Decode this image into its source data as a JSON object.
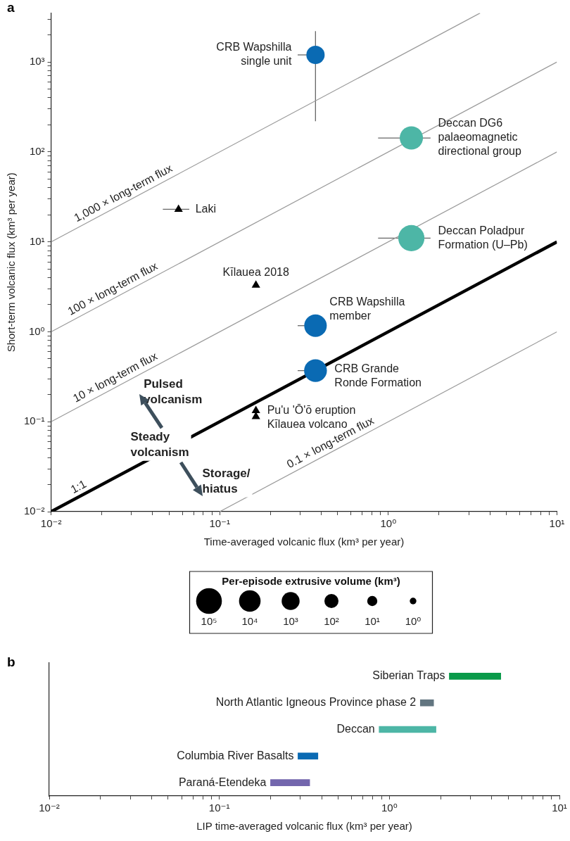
{
  "chart_data": [
    {
      "type": "bubble",
      "title": "a",
      "xlabel": "Time-averaged volcanic flux (km³ per year)",
      "ylabel": "Short-term volcanic flux (km³ per year)",
      "log": "xy",
      "legend": false,
      "grid": false,
      "legend_title": "Per-episode extrusive volume (km³)",
      "size_legend": [
        {
          "value": 0.97,
          "label": "10⁵"
        },
        {
          "value": 0.68,
          "label": "10⁴"
        },
        {
          "value": 0.47,
          "label": "10³"
        },
        {
          "value": 0.29,
          "label": "10²"
        },
        {
          "value": 0.15,
          "label": "10¹"
        },
        {
          "value": 0.064,
          "label": "10⁰"
        }
      ],
      "xlim": [
        0.01,
        10
      ],
      "ylim": [
        0.01,
        3500
      ],
      "xticks": [
        {
          "value": 0.01,
          "label": "10⁻²"
        },
        {
          "value": 0.02,
          "label": null
        },
        {
          "value": 0.03,
          "label": null
        },
        {
          "value": 0.04,
          "label": null
        },
        {
          "value": 0.05,
          "label": null
        },
        {
          "value": 0.06,
          "label": null
        },
        {
          "value": 0.07,
          "label": null
        },
        {
          "value": 0.08,
          "label": null
        },
        {
          "value": 0.09,
          "label": null
        },
        {
          "value": 0.1,
          "label": "10⁻¹"
        },
        {
          "value": 0.2,
          "label": null
        },
        {
          "value": 0.3,
          "label": null
        },
        {
          "value": 0.4,
          "label": null
        },
        {
          "value": 0.5,
          "label": null
        },
        {
          "value": 0.6,
          "label": null
        },
        {
          "value": 0.7,
          "label": null
        },
        {
          "value": 0.8,
          "label": null
        },
        {
          "value": 0.9,
          "label": null
        },
        {
          "value": 1,
          "label": "10⁰"
        },
        {
          "value": 2,
          "label": null
        },
        {
          "value": 3,
          "label": null
        },
        {
          "value": 4,
          "label": null
        },
        {
          "value": 5,
          "label": null
        },
        {
          "value": 6,
          "label": null
        },
        {
          "value": 7,
          "label": null
        },
        {
          "value": 8,
          "label": null
        },
        {
          "value": 9,
          "label": null
        },
        {
          "value": 10,
          "label": "10¹"
        }
      ],
      "yticks": [
        {
          "value": 0.01,
          "label": "10⁻²"
        },
        {
          "value": 0.02,
          "label": null
        },
        {
          "value": 0.03,
          "label": null
        },
        {
          "value": 0.04,
          "label": null
        },
        {
          "value": 0.05,
          "label": null
        },
        {
          "value": 0.06,
          "label": null
        },
        {
          "value": 0.07,
          "label": null
        },
        {
          "value": 0.08,
          "label": null
        },
        {
          "value": 0.09,
          "label": null
        },
        {
          "value": 0.1,
          "label": "10⁻¹"
        },
        {
          "value": 0.2,
          "label": null
        },
        {
          "value": 0.3,
          "label": null
        },
        {
          "value": 0.4,
          "label": null
        },
        {
          "value": 0.5,
          "label": null
        },
        {
          "value": 0.6,
          "label": null
        },
        {
          "value": 0.7,
          "label": null
        },
        {
          "value": 0.8,
          "label": null
        },
        {
          "value": 0.9,
          "label": null
        },
        {
          "value": 1,
          "label": "10⁰"
        },
        {
          "value": 2,
          "label": null
        },
        {
          "value": 3,
          "label": null
        },
        {
          "value": 4,
          "label": null
        },
        {
          "value": 5,
          "label": null
        },
        {
          "value": 6,
          "label": null
        },
        {
          "value": 7,
          "label": null
        },
        {
          "value": 8,
          "label": null
        },
        {
          "value": 9,
          "label": null
        },
        {
          "value": 10,
          "label": "10¹"
        },
        {
          "value": 20,
          "label": null
        },
        {
          "value": 30,
          "label": null
        },
        {
          "value": 40,
          "label": null
        },
        {
          "value": 50,
          "label": null
        },
        {
          "value": 60,
          "label": null
        },
        {
          "value": 70,
          "label": null
        },
        {
          "value": 80,
          "label": null
        },
        {
          "value": 90,
          "label": null
        },
        {
          "value": 100,
          "label": "10²"
        },
        {
          "value": 200,
          "label": null
        },
        {
          "value": 300,
          "label": null
        },
        {
          "value": 400,
          "label": null
        },
        {
          "value": 500,
          "label": null
        },
        {
          "value": 600,
          "label": null
        },
        {
          "value": 700,
          "label": null
        },
        {
          "value": 800,
          "label": null
        },
        {
          "value": 900,
          "label": null
        },
        {
          "value": 1000,
          "label": "10³"
        },
        {
          "value": 2000,
          "label": null
        },
        {
          "value": 3000,
          "label": null
        }
      ],
      "series": [
        {
          "type": "line",
          "name": "1,000 × long-term flux",
          "color": "#9a9a9a",
          "x": [
            0.01,
            3.5
          ],
          "values": [
            10,
            3500
          ]
        },
        {
          "type": "line",
          "name": "100 × long-term flux",
          "color": "#9a9a9a",
          "x": [
            0.01,
            10
          ],
          "values": [
            1,
            1000
          ]
        },
        {
          "type": "line",
          "name": "10 × long-term flux",
          "color": "#9a9a9a",
          "x": [
            0.01,
            10
          ],
          "values": [
            0.1,
            100
          ]
        },
        {
          "type": "line",
          "name": "1:1",
          "color": "#000000",
          "x": [
            0.01,
            10
          ],
          "values": [
            0.01,
            10
          ]
        },
        {
          "type": "line",
          "name": "0.1 × long-term flux",
          "color": "#9a9a9a",
          "x": [
            0.1,
            10
          ],
          "values": [
            0.01,
            1
          ]
        },
        {
          "type": "bubble",
          "color": "#0a6ab3",
          "x": [
            0.37,
            0.37,
            0.37
          ],
          "values": [
            1200,
            1.17,
            0.37
          ],
          "sizes": [
            0.49,
            0.74,
            0.76
          ],
          "errors": [
            [
              220,
              2200
            ],
            null,
            null
          ],
          "xerrors": [
            [
              0.29,
              0.37
            ],
            [
              0.29,
              0.37
            ],
            [
              0.29,
              0.37
            ]
          ]
        },
        {
          "type": "bubble",
          "color": "#4db6a6",
          "x": [
            1.37,
            1.37
          ],
          "values": [
            143,
            11
          ],
          "sizes": [
            0.79,
            1
          ],
          "xerrors": [
            [
              0.87,
              1.78
            ],
            [
              0.87,
              1.78
            ]
          ]
        },
        {
          "type": "scatter",
          "marker": "triangle",
          "color": "#000000",
          "x": [
            0.057,
            0.164,
            0.164,
            0.164
          ],
          "values": [
            23,
            3.3,
            0.133,
            0.114
          ],
          "xerrors": [
            [
              0.046,
              0.066
            ],
            null,
            null,
            null
          ]
        }
      ],
      "annotations": [
        {
          "text": "CRB Wapshilla\nsingle unit",
          "x": 0.37,
          "y": 1200
        },
        {
          "text": "Deccan DG6\npalaeomagnetic\ndirectional group",
          "x": 1.37,
          "y": 143
        },
        {
          "text": "Deccan Poladpur\nFormation (U–Pb)",
          "x": 1.37,
          "y": 11
        },
        {
          "text": "Laki",
          "x": 0.057,
          "y": 23
        },
        {
          "text": "Kīlauea 2018",
          "x": 0.164,
          "y": 3.3
        },
        {
          "text": "CRB Wapshilla\nmember",
          "x": 0.37,
          "y": 1.17
        },
        {
          "text": "CRB Grande\nRonde Formation",
          "x": 0.37,
          "y": 0.37
        },
        {
          "text": "Pu'u 'Ō'ō eruption\nKīlauea volcano",
          "x": 0.164,
          "y": 0.114
        },
        "Pulsed\nvolcanism",
        "Steady\nvolcanism",
        "Storage/\nhiatus"
      ]
    },
    {
      "type": "bar",
      "title": "b",
      "orientation": "horizontal",
      "xlabel": "LIP time-averaged volcanic flux (km³ per year)",
      "log": "x",
      "legend": false,
      "grid": false,
      "xlim": [
        0.01,
        10
      ],
      "xticks": [
        {
          "value": 0.01,
          "label": "10⁻²"
        },
        {
          "value": 0.02,
          "label": null
        },
        {
          "value": 0.03,
          "label": null
        },
        {
          "value": 0.04,
          "label": null
        },
        {
          "value": 0.05,
          "label": null
        },
        {
          "value": 0.06,
          "label": null
        },
        {
          "value": 0.07,
          "label": null
        },
        {
          "value": 0.08,
          "label": null
        },
        {
          "value": 0.09,
          "label": null
        },
        {
          "value": 0.1,
          "label": "10⁻¹"
        },
        {
          "value": 0.2,
          "label": null
        },
        {
          "value": 0.3,
          "label": null
        },
        {
          "value": 0.4,
          "label": null
        },
        {
          "value": 0.5,
          "label": null
        },
        {
          "value": 0.6,
          "label": null
        },
        {
          "value": 0.7,
          "label": null
        },
        {
          "value": 0.8,
          "label": null
        },
        {
          "value": 0.9,
          "label": null
        },
        {
          "value": 1,
          "label": "10⁰"
        },
        {
          "value": 2,
          "label": null
        },
        {
          "value": 3,
          "label": null
        },
        {
          "value": 4,
          "label": null
        },
        {
          "value": 5,
          "label": null
        },
        {
          "value": 6,
          "label": null
        },
        {
          "value": 7,
          "label": null
        },
        {
          "value": 8,
          "label": null
        },
        {
          "value": 9,
          "label": null
        },
        {
          "value": 10,
          "label": "10¹"
        }
      ],
      "categories": [
        "Siberian Traps",
        "North Atlantic Igneous Province phase 2",
        "Deccan",
        "Columbia River Basalts",
        "Paraná-Etendeka"
      ],
      "base": [
        2.25,
        1.52,
        0.87,
        0.29,
        0.2
      ],
      "values": [
        2.27,
        0.3,
        1.01,
        0.09,
        0.14
      ],
      "colors": [
        "#0a9a4a",
        "#627580",
        "#4db6a6",
        "#0a6ab3",
        "#7366ad"
      ]
    }
  ]
}
